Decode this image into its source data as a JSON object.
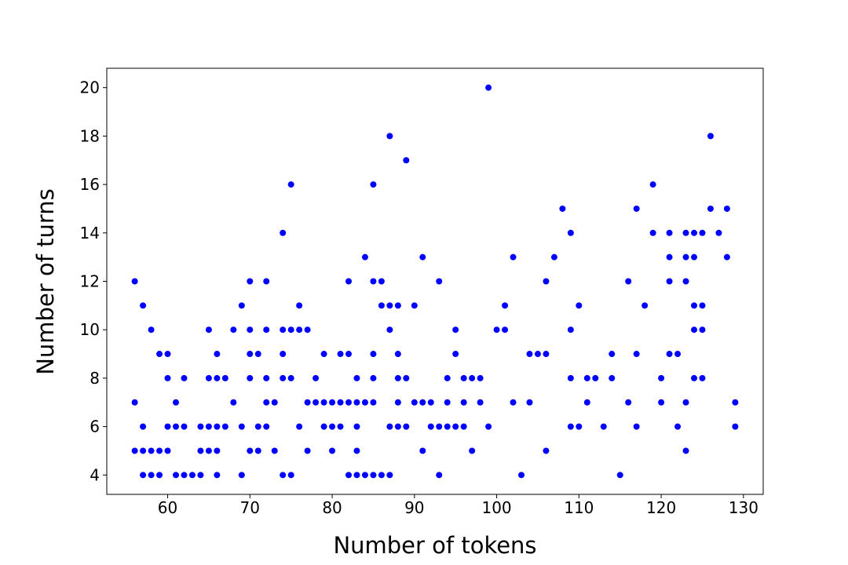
{
  "chart_data": {
    "type": "scatter",
    "title": "",
    "xlabel": "Number of tokens",
    "ylabel": "Number of turns",
    "xlim": [
      52.6,
      132.4
    ],
    "ylim": [
      3.2,
      20.8
    ],
    "xticks": [
      60,
      70,
      80,
      90,
      100,
      110,
      120,
      130
    ],
    "yticks": [
      4,
      6,
      8,
      10,
      12,
      14,
      16,
      18,
      20
    ],
    "grid": false,
    "marker_color": "#0000ff",
    "points": [
      [
        56,
        12
      ],
      [
        56,
        7
      ],
      [
        56,
        5
      ],
      [
        57,
        11
      ],
      [
        57,
        6
      ],
      [
        57,
        5
      ],
      [
        57,
        4
      ],
      [
        58,
        10
      ],
      [
        58,
        5
      ],
      [
        58,
        4
      ],
      [
        59,
        9
      ],
      [
        59,
        5
      ],
      [
        59,
        4
      ],
      [
        60,
        9
      ],
      [
        60,
        8
      ],
      [
        60,
        6
      ],
      [
        60,
        5
      ],
      [
        61,
        7
      ],
      [
        61,
        6
      ],
      [
        61,
        4
      ],
      [
        62,
        8
      ],
      [
        62,
        6
      ],
      [
        62,
        4
      ],
      [
        63,
        4
      ],
      [
        64,
        6
      ],
      [
        64,
        5
      ],
      [
        64,
        4
      ],
      [
        65,
        10
      ],
      [
        65,
        8
      ],
      [
        65,
        6
      ],
      [
        65,
        5
      ],
      [
        66,
        9
      ],
      [
        66,
        8
      ],
      [
        66,
        6
      ],
      [
        66,
        5
      ],
      [
        66,
        4
      ],
      [
        67,
        8
      ],
      [
        67,
        6
      ],
      [
        68,
        10
      ],
      [
        68,
        7
      ],
      [
        69,
        11
      ],
      [
        69,
        6
      ],
      [
        69,
        4
      ],
      [
        70,
        12
      ],
      [
        70,
        10
      ],
      [
        70,
        9
      ],
      [
        70,
        8
      ],
      [
        70,
        5
      ],
      [
        71,
        9
      ],
      [
        71,
        6
      ],
      [
        71,
        5
      ],
      [
        72,
        12
      ],
      [
        72,
        10
      ],
      [
        72,
        8
      ],
      [
        72,
        7
      ],
      [
        72,
        6
      ],
      [
        73,
        7
      ],
      [
        73,
        5
      ],
      [
        74,
        14
      ],
      [
        74,
        10
      ],
      [
        74,
        9
      ],
      [
        74,
        8
      ],
      [
        74,
        4
      ],
      [
        75,
        16
      ],
      [
        75,
        10
      ],
      [
        75,
        8
      ],
      [
        75,
        4
      ],
      [
        76,
        11
      ],
      [
        76,
        10
      ],
      [
        76,
        6
      ],
      [
        77,
        10
      ],
      [
        77,
        7
      ],
      [
        77,
        5
      ],
      [
        78,
        8
      ],
      [
        78,
        7
      ],
      [
        79,
        9
      ],
      [
        79,
        7
      ],
      [
        79,
        6
      ],
      [
        80,
        7
      ],
      [
        80,
        6
      ],
      [
        80,
        5
      ],
      [
        81,
        9
      ],
      [
        81,
        7
      ],
      [
        81,
        6
      ],
      [
        82,
        12
      ],
      [
        82,
        9
      ],
      [
        82,
        7
      ],
      [
        82,
        4
      ],
      [
        83,
        8
      ],
      [
        83,
        7
      ],
      [
        83,
        6
      ],
      [
        83,
        5
      ],
      [
        83,
        4
      ],
      [
        84,
        13
      ],
      [
        84,
        7
      ],
      [
        84,
        4
      ],
      [
        85,
        16
      ],
      [
        85,
        12
      ],
      [
        85,
        9
      ],
      [
        85,
        8
      ],
      [
        85,
        7
      ],
      [
        85,
        4
      ],
      [
        86,
        12
      ],
      [
        86,
        11
      ],
      [
        86,
        4
      ],
      [
        87,
        18
      ],
      [
        87,
        11
      ],
      [
        87,
        10
      ],
      [
        87,
        6
      ],
      [
        87,
        4
      ],
      [
        88,
        11
      ],
      [
        88,
        9
      ],
      [
        88,
        8
      ],
      [
        88,
        7
      ],
      [
        88,
        6
      ],
      [
        89,
        17
      ],
      [
        89,
        8
      ],
      [
        89,
        6
      ],
      [
        90,
        11
      ],
      [
        90,
        7
      ],
      [
        91,
        13
      ],
      [
        91,
        7
      ],
      [
        91,
        5
      ],
      [
        92,
        7
      ],
      [
        92,
        6
      ],
      [
        93,
        12
      ],
      [
        93,
        6
      ],
      [
        93,
        4
      ],
      [
        94,
        8
      ],
      [
        94,
        7
      ],
      [
        94,
        6
      ],
      [
        95,
        10
      ],
      [
        95,
        9
      ],
      [
        95,
        6
      ],
      [
        96,
        8
      ],
      [
        96,
        7
      ],
      [
        96,
        6
      ],
      [
        97,
        8
      ],
      [
        97,
        5
      ],
      [
        98,
        8
      ],
      [
        98,
        7
      ],
      [
        99,
        20
      ],
      [
        99,
        6
      ],
      [
        100,
        10
      ],
      [
        101,
        11
      ],
      [
        101,
        10
      ],
      [
        102,
        13
      ],
      [
        102,
        7
      ],
      [
        103,
        4
      ],
      [
        104,
        9
      ],
      [
        104,
        7
      ],
      [
        105,
        9
      ],
      [
        106,
        12
      ],
      [
        106,
        9
      ],
      [
        106,
        5
      ],
      [
        107,
        13
      ],
      [
        108,
        15
      ],
      [
        109,
        14
      ],
      [
        109,
        10
      ],
      [
        109,
        8
      ],
      [
        109,
        6
      ],
      [
        110,
        11
      ],
      [
        110,
        6
      ],
      [
        111,
        8
      ],
      [
        111,
        7
      ],
      [
        112,
        8
      ],
      [
        113,
        6
      ],
      [
        114,
        9
      ],
      [
        114,
        8
      ],
      [
        115,
        4
      ],
      [
        116,
        12
      ],
      [
        116,
        7
      ],
      [
        117,
        15
      ],
      [
        117,
        9
      ],
      [
        117,
        6
      ],
      [
        118,
        11
      ],
      [
        119,
        16
      ],
      [
        119,
        14
      ],
      [
        120,
        8
      ],
      [
        120,
        7
      ],
      [
        121,
        14
      ],
      [
        121,
        13
      ],
      [
        121,
        12
      ],
      [
        121,
        9
      ],
      [
        122,
        9
      ],
      [
        122,
        6
      ],
      [
        123,
        14
      ],
      [
        123,
        13
      ],
      [
        123,
        12
      ],
      [
        123,
        7
      ],
      [
        123,
        5
      ],
      [
        124,
        14
      ],
      [
        124,
        13
      ],
      [
        124,
        11
      ],
      [
        124,
        10
      ],
      [
        124,
        8
      ],
      [
        125,
        14
      ],
      [
        125,
        11
      ],
      [
        125,
        10
      ],
      [
        125,
        8
      ],
      [
        126,
        18
      ],
      [
        126,
        15
      ],
      [
        127,
        14
      ],
      [
        128,
        15
      ],
      [
        128,
        13
      ],
      [
        129,
        7
      ],
      [
        129,
        6
      ]
    ]
  }
}
